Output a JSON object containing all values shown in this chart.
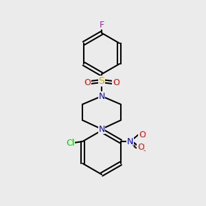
{
  "bg_color": "#ebebeb",
  "bond_color": "#000000",
  "bond_lw": 1.5,
  "atom_colors": {
    "Cl": "#00cc00",
    "N": "#0000ff",
    "O": "#ff0000",
    "F": "#cc00cc",
    "S": "#ccaa00",
    "C": "#000000"
  },
  "font_size": 9,
  "font_size_small": 8
}
